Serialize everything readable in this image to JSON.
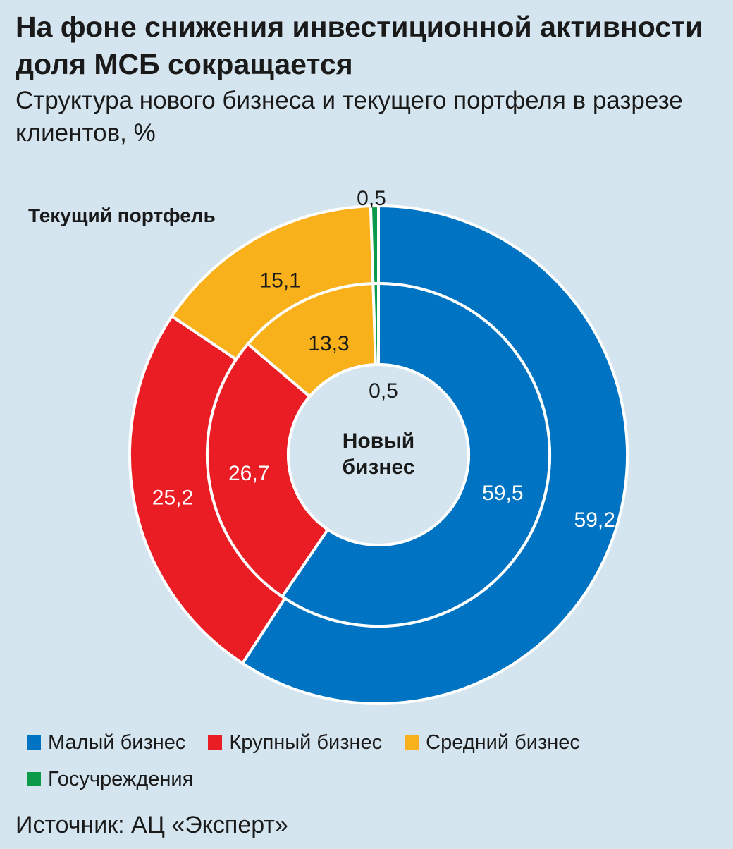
{
  "title": "На фоне снижения инвестиционной активности доля МСБ сокращается",
  "subtitle": "Структура нового бизнеса и текущего портфеля в разрезе клиентов, %",
  "outer_ring_label": "Текущий портфель",
  "inner_ring_label": "Новый бизнес",
  "source": "Источник: АЦ «Эксперт»",
  "legend": [
    {
      "label": "Малый бизнес",
      "color": "#0074c2"
    },
    {
      "label": "Крупный бизнес",
      "color": "#ea1d24"
    },
    {
      "label": "Средний бизнес",
      "color": "#f8b01b"
    },
    {
      "label": "Госучреждения",
      "color": "#0a9a49"
    }
  ],
  "chart_data": {
    "type": "pie",
    "subtype": "nested-donut",
    "title": "На фоне снижения инвестиционной активности доля МСБ сокращается",
    "subtitle": "Структура нового бизнеса и текущего портфеля в разрезе клиентов, %",
    "categories": [
      "Малый бизнес",
      "Крупный бизнес",
      "Средний бизнес",
      "Госучреждения"
    ],
    "colors": [
      "#0074c2",
      "#ea1d24",
      "#f8b01b",
      "#0a9a49"
    ],
    "series": [
      {
        "name": "Текущий портфель",
        "ring": "outer",
        "values": [
          59.2,
          25.2,
          15.1,
          0.5
        ],
        "labels": [
          "59,2",
          "25,2",
          "15,1",
          "0,5"
        ]
      },
      {
        "name": "Новый бизнес",
        "ring": "inner",
        "values": [
          59.5,
          26.7,
          13.3,
          0.5
        ],
        "labels": [
          "59,5",
          "26,7",
          "13,3",
          "0,5"
        ]
      }
    ]
  }
}
